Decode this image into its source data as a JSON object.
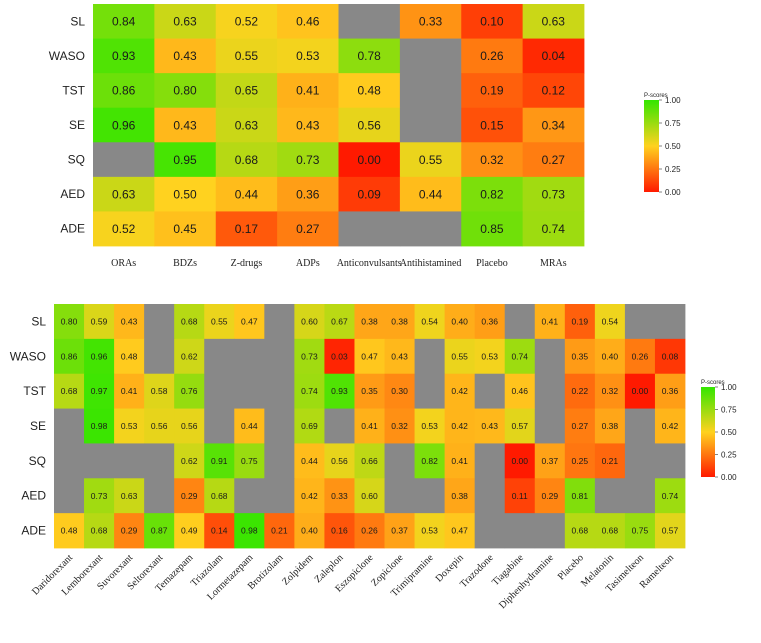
{
  "chart_data": [
    {
      "type": "heatmap",
      "rows": [
        "SL",
        "WASO",
        "TST",
        "SE",
        "SQ",
        "AED",
        "ADE"
      ],
      "columns": [
        "ORAs",
        "BDZs",
        "Z-drugs",
        "ADPs",
        "Anticonvulsants",
        "Antihistamined",
        "Placebo",
        "MRAs"
      ],
      "values": [
        [
          0.84,
          0.63,
          0.52,
          0.46,
          null,
          0.33,
          0.1,
          0.63
        ],
        [
          0.93,
          0.43,
          0.55,
          0.53,
          0.78,
          null,
          0.26,
          0.04
        ],
        [
          0.86,
          0.8,
          0.65,
          0.41,
          0.48,
          null,
          0.19,
          0.12
        ],
        [
          0.96,
          0.43,
          0.63,
          0.43,
          0.56,
          null,
          0.15,
          0.34
        ],
        [
          null,
          0.95,
          0.68,
          0.73,
          0.0,
          0.55,
          0.32,
          0.27
        ],
        [
          0.63,
          0.5,
          0.44,
          0.36,
          0.09,
          0.44,
          0.82,
          0.73
        ],
        [
          0.52,
          0.45,
          0.17,
          0.27,
          null,
          null,
          0.85,
          0.74
        ]
      ],
      "labels": [
        [
          "0.84",
          "0.63",
          "0.52",
          "0.46",
          "",
          "0.33",
          "0.10",
          "0.63"
        ],
        [
          "0.93",
          "0.43",
          "0.55",
          "0.53",
          "0.78",
          "",
          "0.26",
          "0.04"
        ],
        [
          "0.86",
          "0.80",
          "0.65",
          "0.41",
          "0.48",
          "",
          "0.19",
          "0.12"
        ],
        [
          "0.96",
          "0.43",
          "0.63",
          "0.43",
          "0.56",
          "",
          "0.15",
          "0.34"
        ],
        [
          "",
          "0.95",
          "0.68",
          "0.73",
          "0.00",
          "0.55",
          "0.32",
          "0.27"
        ],
        [
          "0.63",
          "0.50",
          "0.44",
          "0.36",
          "0.09",
          "0.44",
          "0.82",
          "0.73"
        ],
        [
          "0.52",
          "0.45",
          "0.17",
          "0.27",
          "",
          "",
          "0.85",
          "0.74"
        ]
      ],
      "legend": {
        "title": "P-scores",
        "ticks": [
          "1.00",
          "0.75",
          "0.50",
          "0.25",
          "0.00"
        ],
        "placement": "right"
      },
      "missing_color": "#888888",
      "color_scale": [
        "#ff1a00",
        "#ffd21f",
        "#33e600"
      ],
      "xlabel": "",
      "ylabel": ""
    },
    {
      "type": "heatmap",
      "rows": [
        "SL",
        "WASO",
        "TST",
        "SE",
        "SQ",
        "AED",
        "ADE"
      ],
      "columns": [
        "Daridorexant",
        "Lemborexant",
        "Suvorexant",
        "Seltorexant",
        "Temazepam",
        "Triazolam",
        "Lormetazepam",
        "Brotizolam",
        "Zolpidem",
        "Zaleplon",
        "Eszopiclone",
        "Zopiclone",
        "Trimipramine",
        "Doxepin",
        "Trazodone",
        "Tiagabine",
        "Diphenhydramine",
        "Placebo",
        "Melatonin",
        "Tasimelteon",
        "Ramelteon"
      ],
      "values": [
        [
          0.8,
          0.59,
          0.43,
          null,
          0.68,
          0.55,
          0.47,
          null,
          0.6,
          0.67,
          0.38,
          0.38,
          0.54,
          0.4,
          0.36,
          null,
          0.41,
          0.19,
          0.54,
          null,
          null
        ],
        [
          0.86,
          0.96,
          0.48,
          null,
          0.62,
          null,
          null,
          null,
          0.73,
          0.03,
          0.47,
          0.43,
          null,
          0.55,
          0.53,
          0.74,
          null,
          0.35,
          0.4,
          0.26,
          0.08
        ],
        [
          0.68,
          0.97,
          0.41,
          0.58,
          0.76,
          null,
          null,
          null,
          0.74,
          0.93,
          0.35,
          0.3,
          null,
          0.42,
          null,
          0.46,
          null,
          0.22,
          0.32,
          0.0,
          0.36
        ],
        [
          null,
          0.98,
          0.53,
          0.56,
          0.56,
          null,
          0.44,
          null,
          0.69,
          null,
          0.41,
          0.32,
          0.53,
          0.42,
          0.43,
          0.57,
          null,
          0.27,
          0.38,
          null,
          0.42
        ],
        [
          null,
          null,
          null,
          null,
          0.62,
          0.91,
          0.75,
          null,
          0.44,
          0.56,
          0.66,
          null,
          0.82,
          0.41,
          null,
          0.0,
          0.37,
          0.25,
          0.21,
          null,
          null
        ],
        [
          null,
          0.73,
          0.63,
          null,
          0.29,
          0.68,
          null,
          null,
          0.42,
          0.33,
          0.6,
          null,
          null,
          0.38,
          null,
          0.11,
          0.29,
          0.81,
          null,
          null,
          0.74
        ],
        [
          0.48,
          0.68,
          0.29,
          0.87,
          0.49,
          0.14,
          0.98,
          0.21,
          0.4,
          0.16,
          0.26,
          0.37,
          0.53,
          0.47,
          null,
          null,
          null,
          0.68,
          0.68,
          0.75,
          0.57
        ]
      ],
      "labels": [
        [
          "0.80",
          "0.59",
          "0.43",
          "",
          "0.68",
          "0.55",
          "0.47",
          "",
          "0.60",
          "0.67",
          "0.38",
          "0.38",
          "0.54",
          "0.40",
          "0.36",
          "",
          "0.41",
          "0.19",
          "0.54",
          "",
          ""
        ],
        [
          "0.86",
          "0.96",
          "0.48",
          "",
          "0.62",
          "",
          "",
          "",
          "0.73",
          "0.03",
          "0.47",
          "0.43",
          "",
          "0.55",
          "0.53",
          "0.74",
          "",
          "0.35",
          "0.40",
          "0.26",
          "0.08"
        ],
        [
          "0.68",
          "0.97",
          "0.41",
          "0.58",
          "0.76",
          "",
          "",
          "",
          "0.74",
          "0.93",
          "0.35",
          "0.30",
          "",
          "0.42",
          "",
          "0.46",
          "",
          "0.22",
          "0.32",
          "0.00",
          "0.36"
        ],
        [
          "",
          "0.98",
          "0.53",
          "0.56",
          "0.56",
          "",
          "0.44",
          "",
          "0.69",
          "",
          "0.41",
          "0.32",
          "0.53",
          "0.42",
          "0.43",
          "0.57",
          "",
          "0.27",
          "0.38",
          "",
          "0.42"
        ],
        [
          "",
          "",
          "",
          "",
          "0.62",
          "0.91",
          "0.75",
          "",
          "0.44",
          "0.56",
          "0.66",
          "",
          "0.82",
          "0.41",
          "",
          "0.00",
          "0.37",
          "0.25",
          "0.21",
          "",
          ""
        ],
        [
          "",
          "0.73",
          "0.63",
          "",
          "0.29",
          "0.68",
          "",
          "",
          "0.42",
          "0.33",
          "0.60",
          "",
          "",
          "0.38",
          "",
          "0.11",
          "0.29",
          "0.81",
          "",
          "",
          "0.74"
        ],
        [
          "0.48",
          "0.68",
          "0.29",
          "0.87",
          "0.49",
          "0.14",
          "0.98",
          "0.21",
          "0.40",
          "0.16",
          "0.26",
          "0.37",
          "0.53",
          "0.47",
          "",
          "",
          "",
          "0.68",
          "0.68",
          "0.75",
          "0.57"
        ]
      ],
      "legend": {
        "title": "P-scores",
        "ticks": [
          "1.00",
          "0.75",
          "0.50",
          "0.25",
          "0.00"
        ],
        "placement": "right"
      },
      "missing_color": "#888888",
      "color_scale": [
        "#ff1a00",
        "#ffd21f",
        "#33e600"
      ],
      "xlabel": "",
      "ylabel": ""
    }
  ]
}
